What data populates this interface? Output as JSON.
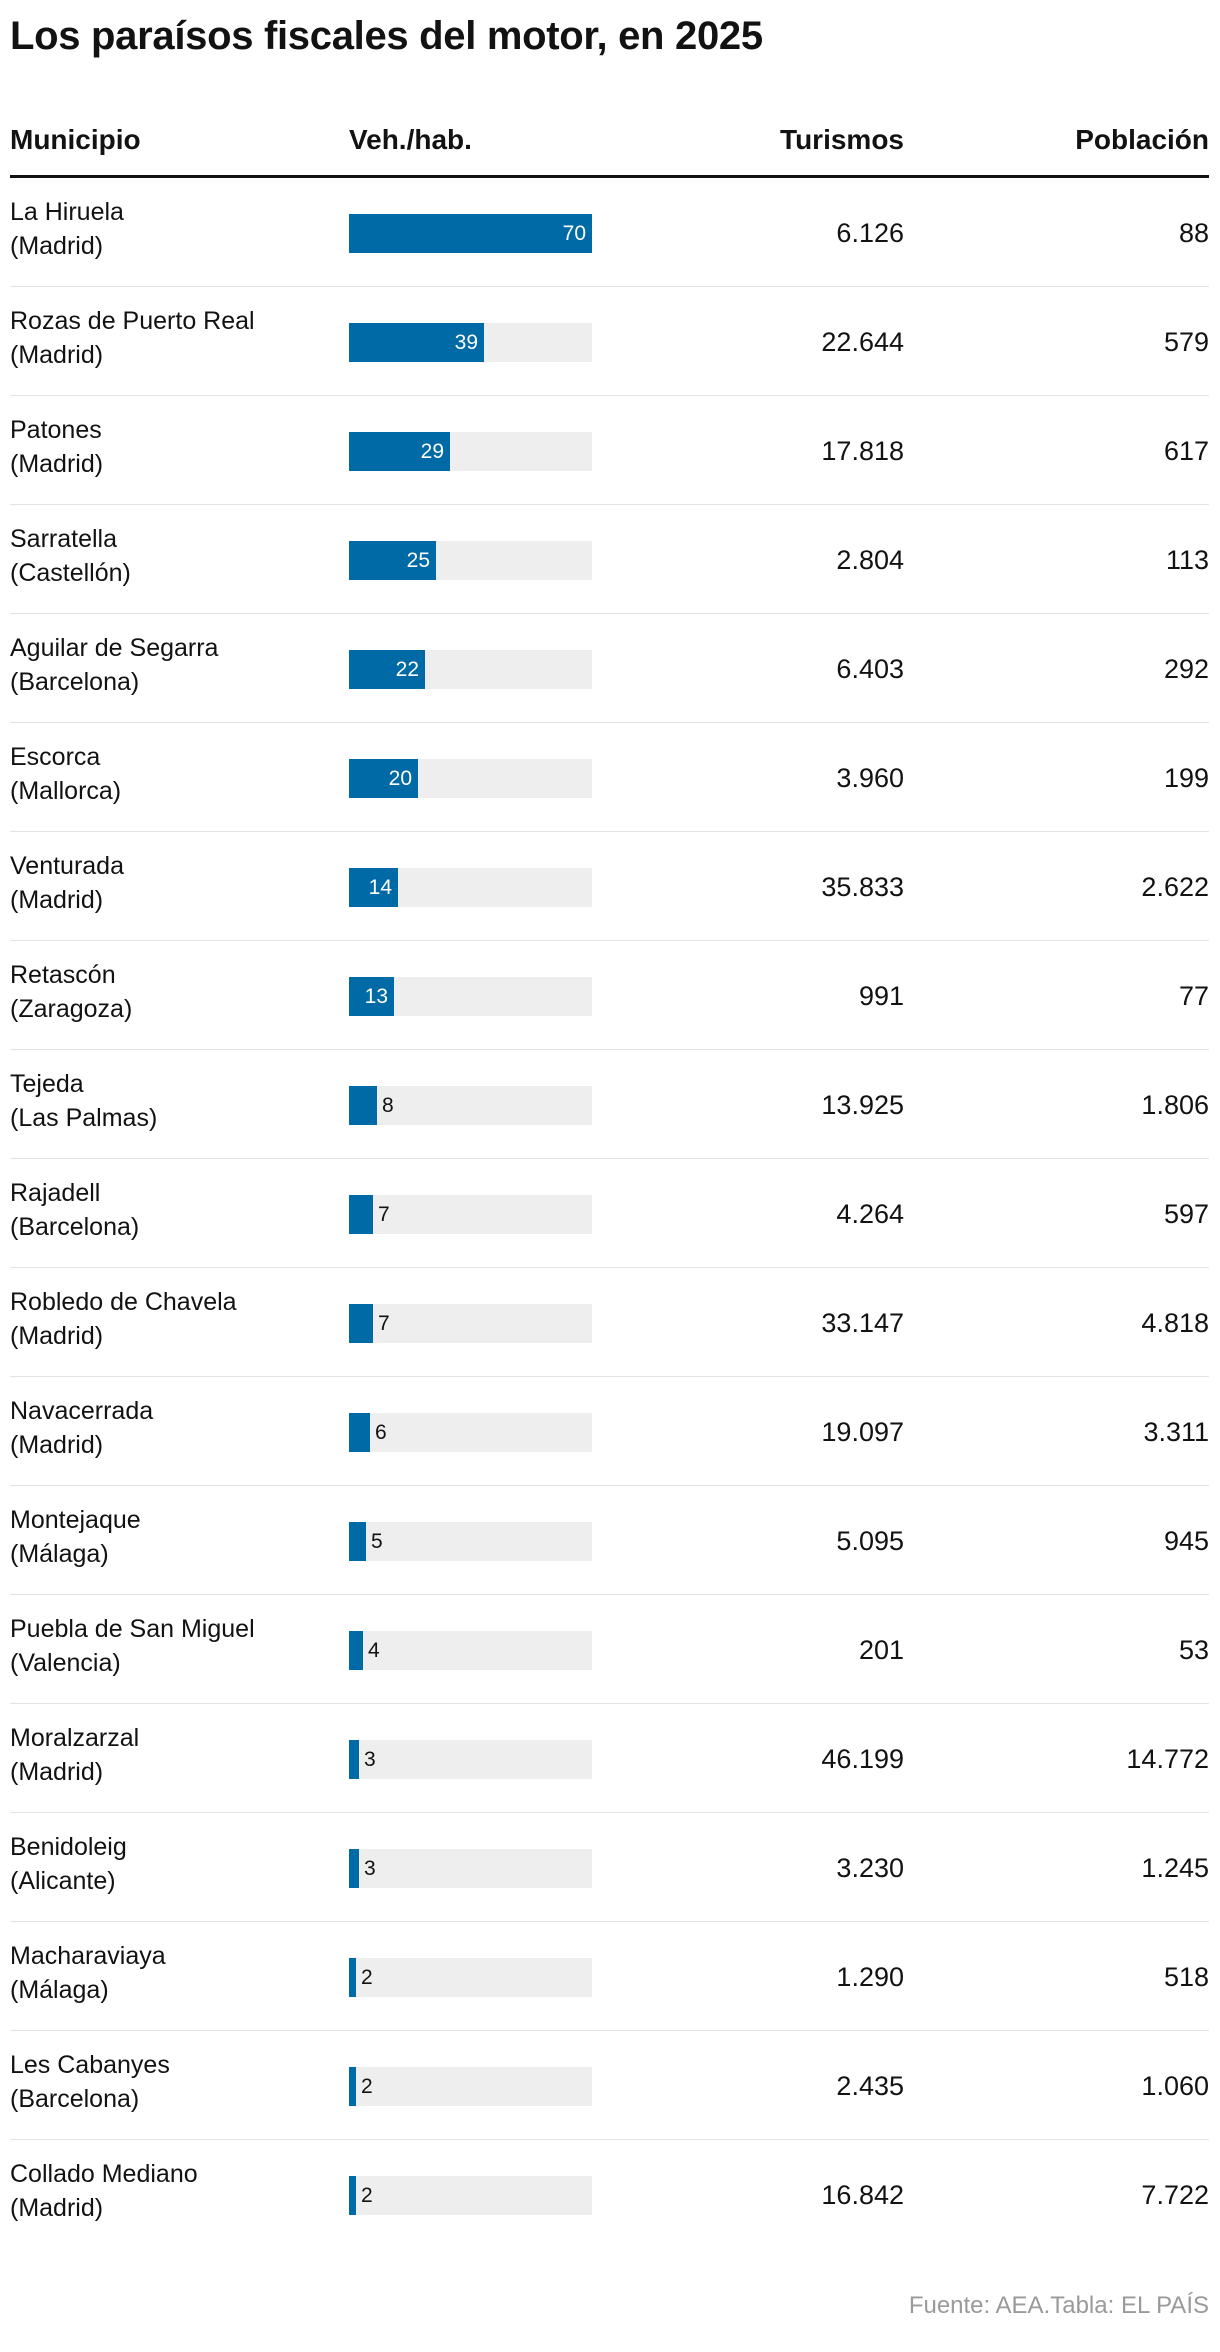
{
  "title": "Los paraísos fiscales del motor, en 2025",
  "columns": {
    "municipio": "Municipio",
    "ratio": "Veh./hab.",
    "turismos": "Turismos",
    "poblacion": "Población"
  },
  "colors": {
    "bar": "#006aa7",
    "track": "#eeeeee",
    "rule": "#121212",
    "divider": "#e3e3e3",
    "source": "#9a9a9a"
  },
  "chart_data": {
    "type": "table",
    "title": "Los paraísos fiscales del motor, en 2025",
    "bar_column": "Veh./hab.",
    "bar_max": 70,
    "rows": [
      {
        "municipio": "La Hiruela",
        "provincia": "(Madrid)",
        "ratio": 70,
        "ratio_label": "70",
        "turismos": "6.126",
        "poblacion": "88"
      },
      {
        "municipio": "Rozas de Puerto Real",
        "provincia": "(Madrid)",
        "ratio": 39,
        "ratio_label": "39",
        "turismos": "22.644",
        "poblacion": "579"
      },
      {
        "municipio": "Patones",
        "provincia": "(Madrid)",
        "ratio": 29,
        "ratio_label": "29",
        "turismos": "17.818",
        "poblacion": "617"
      },
      {
        "municipio": "Sarratella",
        "provincia": "(Castellón)",
        "ratio": 25,
        "ratio_label": "25",
        "turismos": "2.804",
        "poblacion": "113"
      },
      {
        "municipio": "Aguilar de Segarra",
        "provincia": "(Barcelona)",
        "ratio": 22,
        "ratio_label": "22",
        "turismos": "6.403",
        "poblacion": "292"
      },
      {
        "municipio": "Escorca",
        "provincia": "(Mallorca)",
        "ratio": 20,
        "ratio_label": "20",
        "turismos": "3.960",
        "poblacion": "199"
      },
      {
        "municipio": "Venturada",
        "provincia": "(Madrid)",
        "ratio": 14,
        "ratio_label": "14",
        "turismos": "35.833",
        "poblacion": "2.622"
      },
      {
        "municipio": "Retascón",
        "provincia": "(Zaragoza)",
        "ratio": 13,
        "ratio_label": "13",
        "turismos": "991",
        "poblacion": "77"
      },
      {
        "municipio": "Tejeda",
        "provincia": "(Las Palmas)",
        "ratio": 8,
        "ratio_label": "8",
        "turismos": "13.925",
        "poblacion": "1.806"
      },
      {
        "municipio": "Rajadell",
        "provincia": "(Barcelona)",
        "ratio": 7,
        "ratio_label": "7",
        "turismos": "4.264",
        "poblacion": "597"
      },
      {
        "municipio": "Robledo de Chavela",
        "provincia": "(Madrid)",
        "ratio": 7,
        "ratio_label": "7",
        "turismos": "33.147",
        "poblacion": "4.818"
      },
      {
        "municipio": "Navacerrada",
        "provincia": "(Madrid)",
        "ratio": 6,
        "ratio_label": "6",
        "turismos": "19.097",
        "poblacion": "3.311"
      },
      {
        "municipio": "Montejaque",
        "provincia": "(Málaga)",
        "ratio": 5,
        "ratio_label": "5",
        "turismos": "5.095",
        "poblacion": "945"
      },
      {
        "municipio": "Puebla de San Miguel",
        "provincia": "(Valencia)",
        "ratio": 4,
        "ratio_label": "4",
        "turismos": "201",
        "poblacion": "53"
      },
      {
        "municipio": "Moralzarzal",
        "provincia": "(Madrid)",
        "ratio": 3,
        "ratio_label": "3",
        "turismos": "46.199",
        "poblacion": "14.772"
      },
      {
        "municipio": "Benidoleig",
        "provincia": "(Alicante)",
        "ratio": 3,
        "ratio_label": "3",
        "turismos": "3.230",
        "poblacion": "1.245"
      },
      {
        "municipio": "Macharaviaya",
        "provincia": "(Málaga)",
        "ratio": 2,
        "ratio_label": "2",
        "turismos": "1.290",
        "poblacion": "518"
      },
      {
        "municipio": "Les Cabanyes",
        "provincia": "(Barcelona)",
        "ratio": 2,
        "ratio_label": "2",
        "turismos": "2.435",
        "poblacion": "1.060"
      },
      {
        "municipio": "Collado Mediano",
        "provincia": "(Madrid)",
        "ratio": 2,
        "ratio_label": "2",
        "turismos": "16.842",
        "poblacion": "7.722"
      }
    ]
  },
  "source": "Fuente: AEA.Tabla: EL PAÍS"
}
